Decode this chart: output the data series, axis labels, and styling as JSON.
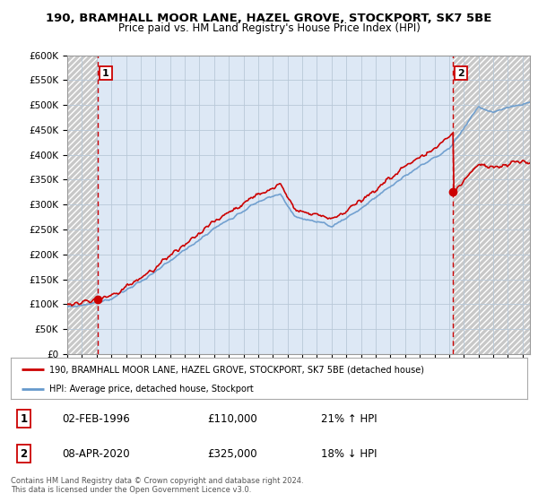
{
  "title_line1": "190, BRAMHALL MOOR LANE, HAZEL GROVE, STOCKPORT, SK7 5BE",
  "title_line2": "Price paid vs. HM Land Registry's House Price Index (HPI)",
  "ylim": [
    0,
    600000
  ],
  "yticks": [
    0,
    50000,
    100000,
    150000,
    200000,
    250000,
    300000,
    350000,
    400000,
    450000,
    500000,
    550000,
    600000
  ],
  "ytick_labels": [
    "£0",
    "£50K",
    "£100K",
    "£150K",
    "£200K",
    "£250K",
    "£300K",
    "£350K",
    "£400K",
    "£450K",
    "£500K",
    "£550K",
    "£600K"
  ],
  "xlim_start": 1994.0,
  "xlim_end": 2025.5,
  "xticks": [
    1994,
    1995,
    1996,
    1997,
    1998,
    1999,
    2000,
    2001,
    2002,
    2003,
    2004,
    2005,
    2006,
    2007,
    2008,
    2009,
    2010,
    2011,
    2012,
    2013,
    2014,
    2015,
    2016,
    2017,
    2018,
    2019,
    2020,
    2021,
    2022,
    2023,
    2024,
    2025
  ],
  "sale1_x": 1996.09,
  "sale1_y": 110000,
  "sale1_label": "1",
  "sale1_date": "02-FEB-1996",
  "sale1_price": "£110,000",
  "sale1_hpi": "21% ↑ HPI",
  "sale2_x": 2020.27,
  "sale2_y": 325000,
  "sale2_label": "2",
  "sale2_date": "08-APR-2020",
  "sale2_price": "£325,000",
  "sale2_hpi": "18% ↓ HPI",
  "legend_line1": "190, BRAMHALL MOOR LANE, HAZEL GROVE, STOCKPORT, SK7 5BE (detached house)",
  "legend_line2": "HPI: Average price, detached house, Stockport",
  "footer": "Contains HM Land Registry data © Crown copyright and database right 2024.\nThis data is licensed under the Open Government Licence v3.0.",
  "price_color": "#cc0000",
  "hpi_color": "#6699cc",
  "plot_bg_color": "#dde8f5",
  "grid_color": "#b8c8d8",
  "hatch_color": "#c8c8c8"
}
